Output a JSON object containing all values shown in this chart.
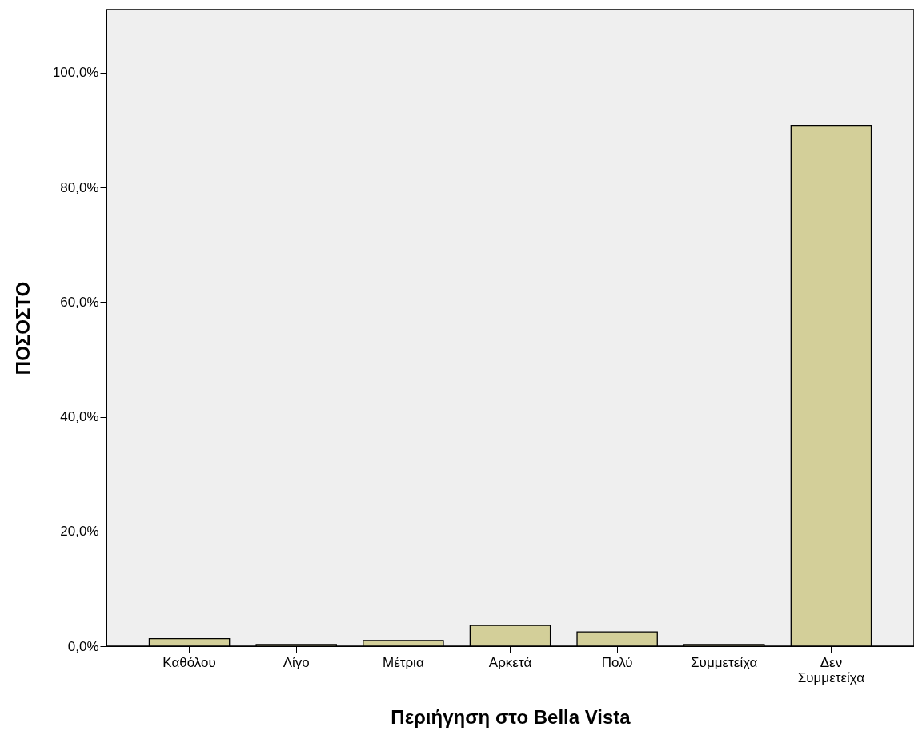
{
  "chart_data": {
    "type": "bar",
    "xlabel": "Περιήγηση στο Bella Vista",
    "ylabel": "ΠΟΣΟΣΤΟ",
    "categories": [
      "Καθόλου",
      "Λίγο",
      "Μέτρια",
      "Αρκετά",
      "Πολύ",
      "Συμμετείχα",
      "Δεν\nΣυμμετείχα"
    ],
    "values": [
      1.3,
      0.3,
      1.0,
      3.6,
      2.5,
      0.3,
      90.8
    ],
    "color": "#d3cf99",
    "ylim": [
      0,
      111
    ],
    "yticks": [
      {
        "value": 0,
        "label": "0,0%"
      },
      {
        "value": 20,
        "label": "20,0%"
      },
      {
        "value": 40,
        "label": "40,0%"
      },
      {
        "value": 60,
        "label": "60,0%"
      },
      {
        "value": 80,
        "label": "80,0%"
      },
      {
        "value": 100,
        "label": "100,0%"
      }
    ],
    "grid": false
  }
}
